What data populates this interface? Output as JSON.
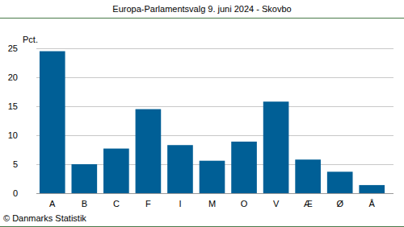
{
  "chart_data": {
    "type": "bar",
    "title": "Europa-Parlamentsvalg 9. juni 2024 - Skovbo",
    "y_label": "Pct.",
    "source": "© Danmarks Statistik",
    "categories": [
      "A",
      "B",
      "C",
      "F",
      "I",
      "M",
      "O",
      "V",
      "Æ",
      "Ø",
      "Å"
    ],
    "values": [
      24.5,
      5.0,
      7.7,
      14.5,
      8.3,
      5.6,
      8.9,
      15.8,
      5.8,
      3.7,
      1.4
    ],
    "color": "#005f96",
    "ylim": [
      0,
      25
    ],
    "yticks": [
      0,
      5,
      10,
      15,
      20,
      25
    ],
    "grid": true
  }
}
